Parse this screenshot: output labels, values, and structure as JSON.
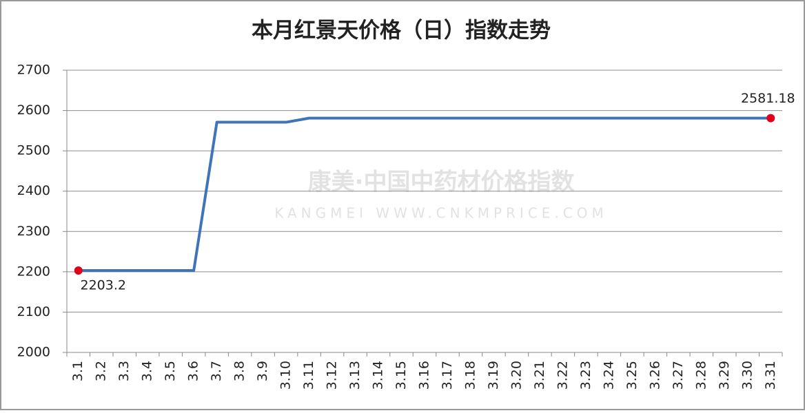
{
  "chart_data": {
    "type": "line",
    "title": "本月红景天价格（日）指数走势",
    "watermark": [
      "康美·中国中药材价格指数",
      "KANGMEI WWW.CNKMPRICE.COM"
    ],
    "categories": [
      "3.1",
      "3.2",
      "3.3",
      "3.4",
      "3.5",
      "3.6",
      "3.7",
      "3.8",
      "3.9",
      "3.10",
      "3.11",
      "3.12",
      "3.13",
      "3.14",
      "3.15",
      "3.16",
      "3.17",
      "3.18",
      "3.19",
      "3.20",
      "3.21",
      "3.22",
      "3.23",
      "3.24",
      "3.25",
      "3.26",
      "3.27",
      "3.28",
      "3.29",
      "3.30",
      "3.31"
    ],
    "series": [
      {
        "name": "红景天",
        "color": "#3f74b8",
        "values": [
          2203.2,
          2203.2,
          2203.2,
          2203.2,
          2203.2,
          2203.2,
          2571,
          2571,
          2571,
          2571,
          2581.18,
          2581.18,
          2581.18,
          2581.18,
          2581.18,
          2581.18,
          2581.18,
          2581.18,
          2581.18,
          2581.18,
          2581.18,
          2581.18,
          2581.18,
          2581.18,
          2581.18,
          2581.18,
          2581.18,
          2581.18,
          2581.18,
          2581.18,
          2581.18
        ],
        "value_labels": [
          "2203.2",
          null,
          null,
          null,
          null,
          null,
          null,
          null,
          null,
          null,
          null,
          null,
          null,
          null,
          null,
          null,
          null,
          null,
          null,
          null,
          null,
          null,
          null,
          null,
          null,
          null,
          null,
          null,
          null,
          null,
          "2581.18"
        ],
        "marker_color": "#e0001b"
      }
    ],
    "ylim": [
      2000,
      2700
    ],
    "yticks": [
      2000,
      2100,
      2200,
      2300,
      2400,
      2500,
      2600,
      2700
    ],
    "grid": true
  }
}
